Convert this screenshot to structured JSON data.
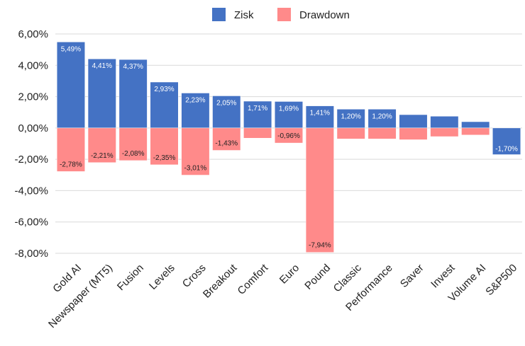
{
  "chart_data": {
    "type": "bar",
    "categories": [
      "Gold AI",
      "Newspaper (MT5)",
      "Fusion",
      "Levels",
      "Cross",
      "Breakout",
      "Comfort",
      "Euro",
      "Pound",
      "Classic",
      "Performance",
      "Saver",
      "Invest",
      "Volume AI",
      "S&P500"
    ],
    "series": [
      {
        "name": "Zisk",
        "color": "#4472c4",
        "values": [
          5.49,
          4.41,
          4.37,
          2.93,
          2.23,
          2.05,
          1.71,
          1.69,
          1.41,
          1.2,
          1.2,
          0.85,
          0.75,
          0.4,
          -1.7
        ],
        "labels": [
          "5,49%",
          "4,41%",
          "4,37%",
          "2,93%",
          "2,23%",
          "2,05%",
          "1,71%",
          "1,69%",
          "1,41%",
          "1,20%",
          "1,20%",
          "",
          "",
          "",
          "-1,70%"
        ]
      },
      {
        "name": "Drawdown",
        "color": "#ff8a8a",
        "values": [
          -2.78,
          -2.21,
          -2.08,
          -2.35,
          -3.01,
          -1.43,
          -0.65,
          -0.96,
          -7.94,
          -0.7,
          -0.7,
          -0.75,
          -0.55,
          -0.45,
          0
        ],
        "labels": [
          "-2,78%",
          "-2,21%",
          "-2,08%",
          "-2,35%",
          "-3,01%",
          "-1,43%",
          "",
          "-0,96%",
          "-7,94%",
          "",
          "",
          "",
          "",
          "",
          ""
        ]
      }
    ],
    "yticks": [
      "6,00%",
      "4,00%",
      "2,00%",
      "0,00%",
      "-2,00%",
      "-4,00%",
      "-6,00%",
      "-8,00%"
    ],
    "ytick_values": [
      6,
      4,
      2,
      0,
      -2,
      -4,
      -6,
      -8
    ],
    "ylim": [
      -8,
      6
    ],
    "grid": true,
    "legend_position": "top-center",
    "title": "",
    "xlabel": "",
    "ylabel": ""
  }
}
